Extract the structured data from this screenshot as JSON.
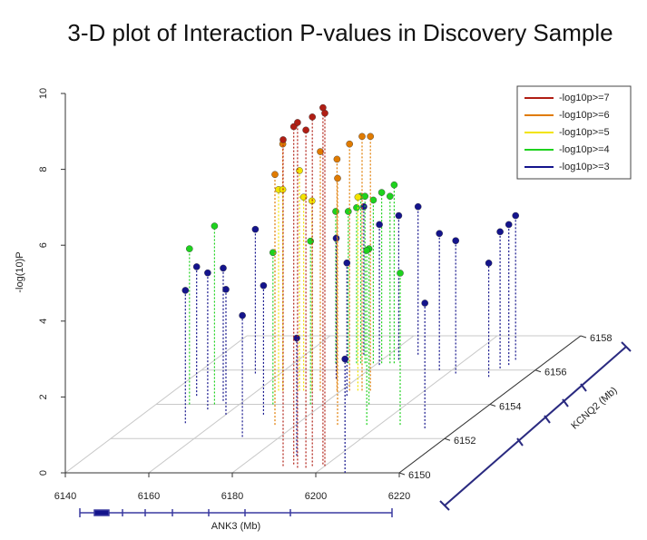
{
  "chart_data": {
    "type": "scatter3d",
    "title": "3-D plot of Interaction P-values in Discovery Sample",
    "xlabel": "ANK3 (Mb)",
    "ylabel": "-log(10)P",
    "zlabel": "KCNQ2 (Mb)",
    "xlim": [
      6140,
      6220
    ],
    "xticks": [
      6140,
      6160,
      6180,
      6200,
      6220
    ],
    "zlim": [
      6150,
      6158
    ],
    "zticks": [
      6150,
      6152,
      6154,
      6156,
      6158
    ],
    "ylim": [
      0,
      10
    ],
    "yticks": [
      0,
      2,
      4,
      6,
      8,
      10
    ],
    "grid": true,
    "legend": "upper right",
    "series": [
      {
        "name": "-log10p>=7",
        "color": "#b01e14",
        "x": [
          6190,
          6192,
          6194,
          6197,
          6199,
          6200,
          6196
        ],
        "z": [
          6150.4,
          6150.5,
          6150.3,
          6150.4,
          6150.5,
          6150.4,
          6150.3
        ],
        "values": [
          8.6,
          8.9,
          9.1,
          9.2,
          9.4,
          9.3,
          8.9
        ]
      },
      {
        "name": "-log10p>=6",
        "color": "#e07b00",
        "x": [
          6175,
          6166,
          6179,
          6182,
          6185,
          6187,
          6175,
          6190
        ],
        "z": [
          6152.8,
          6154.8,
          6154.8,
          6154.8,
          6154.8,
          6154.8,
          6154.8,
          6152.8
        ],
        "values": [
          6.6,
          6.5,
          6.1,
          6.5,
          6.7,
          6.7,
          6.3,
          6.5
        ]
      },
      {
        "name": "-log10p>=5",
        "color": "#f2e400",
        "x": [
          6165,
          6166,
          6170,
          6171,
          6173,
          6184
        ],
        "z": [
          6154.8,
          6154.8,
          6154.8,
          6154.8,
          6154.8,
          6154.8
        ],
        "values": [
          5.3,
          5.3,
          5.8,
          5.1,
          5.0,
          5.1
        ]
      },
      {
        "name": "-log10p>=4",
        "color": "#1ed21e",
        "x": [
          6148,
          6154,
          6168,
          6177,
          6191,
          6197,
          6205,
          6170,
          6173,
          6176,
          6177,
          6179,
          6181,
          6183,
          6184,
          6175
        ],
        "z": [
          6154,
          6154,
          6154,
          6154,
          6154,
          6152.8,
          6152.8,
          6156.4,
          6156.4,
          6156.4,
          6156.4,
          6156.4,
          6156.4,
          6156.4,
          6156.4,
          6156.4
        ],
        "values": [
          4.1,
          4.7,
          4.0,
          4.3,
          4.1,
          4.6,
          4.0,
          4.0,
          4.0,
          4.4,
          4.4,
          4.3,
          4.5,
          4.4,
          4.7,
          4.1
        ]
      },
      {
        "name": "-log10p>=3",
        "color": "#14148c",
        "x": [
          6153,
          6147,
          6154,
          6155,
          6160,
          6171,
          6154,
          6169,
          6190,
          6175,
          6183,
          6174,
          6181,
          6184,
          6187,
          6197,
          6202,
          6211,
          6211,
          6212,
          6212,
          6212,
          6207
        ],
        "z": [
          6152.9,
          6154.5,
          6153.7,
          6154.2,
          6153.4,
          6152.1,
          6155.8,
          6153.4,
          6151,
          6155.5,
          6154.5,
          6156.9,
          6156.3,
          6156.6,
          6156.9,
          6156,
          6155.8,
          6155.6,
          6156.1,
          6156.3,
          6156.6,
          6152.6,
          6150
        ],
        "values": [
          3.5,
          3.4,
          3.6,
          3.5,
          3.3,
          3.2,
          3.8,
          3.4,
          3.1,
          3.7,
          3.5,
          3.9,
          3.7,
          3.8,
          3.9,
          3.6,
          3.5,
          3.0,
          3.6,
          3.7,
          3.8,
          3.3,
          3.0
        ]
      }
    ]
  }
}
